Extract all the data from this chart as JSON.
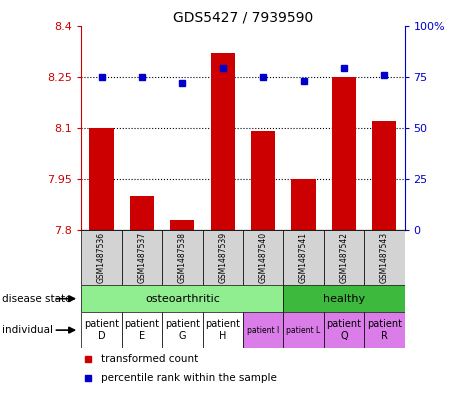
{
  "title": "GDS5427 / 7939590",
  "samples": [
    "GSM1487536",
    "GSM1487537",
    "GSM1487538",
    "GSM1487539",
    "GSM1487540",
    "GSM1487541",
    "GSM1487542",
    "GSM1487543"
  ],
  "transformed_count": [
    8.1,
    7.9,
    7.83,
    8.32,
    8.09,
    7.95,
    8.25,
    8.12
  ],
  "percentile_rank": [
    75,
    75,
    72,
    79,
    75,
    73,
    79,
    76
  ],
  "ylim_left": [
    7.8,
    8.4
  ],
  "ylim_right": [
    0,
    100
  ],
  "yticks_left": [
    7.8,
    7.95,
    8.1,
    8.25,
    8.4
  ],
  "yticks_right": [
    0,
    25,
    50,
    75,
    100
  ],
  "bar_color": "#cc0000",
  "dot_color": "#0000cc",
  "bar_bottom": 7.8,
  "disease_state_colors": [
    "#90ee90",
    "#3dba3d"
  ],
  "individual_colors": [
    "#ffffff",
    "#ffffff",
    "#ffffff",
    "#ffffff",
    "#da7de8",
    "#da7de8",
    "#da7de8",
    "#da7de8"
  ],
  "individual_labels": [
    "patient\nD",
    "patient\nE",
    "patient\nG",
    "patient\nH",
    "patient I",
    "patient L",
    "patient\nQ",
    "patient\nR"
  ],
  "individual_fontsizes": [
    7,
    7,
    7,
    7,
    5.5,
    5.5,
    7,
    7
  ],
  "label_color_left": "#cc0000",
  "label_color_right": "#0000cc",
  "bar_width": 0.6,
  "sample_bg": "#d3d3d3"
}
